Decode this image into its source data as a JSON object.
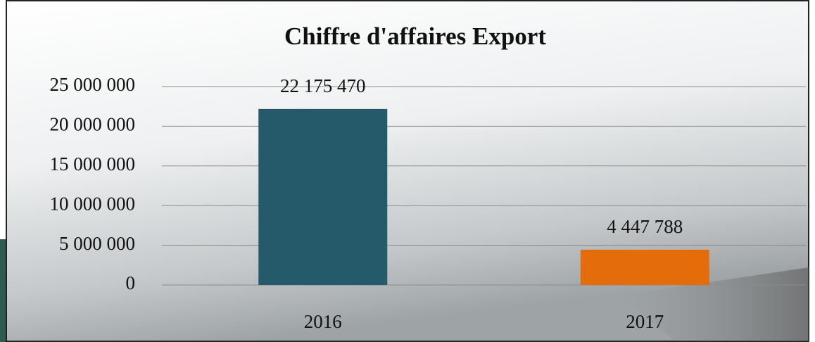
{
  "chart_data": {
    "type": "bar",
    "title": "Chiffre d'affaires Export",
    "categories": [
      "2016",
      "2017"
    ],
    "values": [
      22175470,
      4447788
    ],
    "value_labels": [
      "22 175 470",
      "4 447 788"
    ],
    "colors": [
      "#245a69",
      "#e46c0a"
    ],
    "ylim": [
      0,
      25000000
    ],
    "yticks": [
      0,
      {
        "value": 5000000,
        "label": "5 000 000"
      },
      {
        "value": 10000000,
        "label": "10 000 000"
      },
      {
        "value": 15000000,
        "label": "15 000 000"
      },
      {
        "value": 20000000,
        "label": "20 000 000"
      },
      {
        "value": 25000000,
        "label": "25 000 000"
      }
    ],
    "grid": true
  }
}
